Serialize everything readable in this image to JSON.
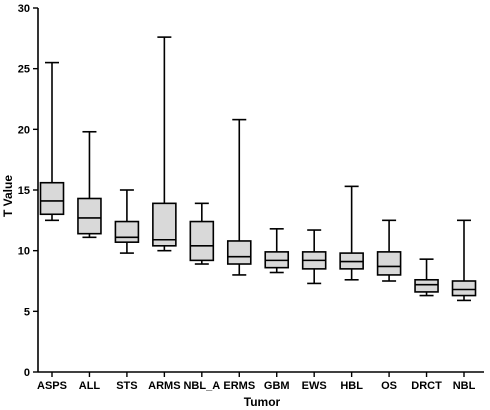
{
  "chart_data": {
    "type": "box",
    "title": "",
    "xlabel": "Tumor",
    "ylabel": "T Value",
    "ylim": [
      0,
      30
    ],
    "yticks": [
      "0",
      "5",
      "10",
      "15",
      "20",
      "25",
      "30"
    ],
    "box_fill": "#d9d9d9",
    "grid": false,
    "categories": [
      "ASPS",
      "ALL",
      "STS",
      "ARMS",
      "NBL_A",
      "ERMS",
      "GBM",
      "EWS",
      "HBL",
      "OS",
      "DRCT",
      "NBL"
    ],
    "boxes": [
      {
        "min": 12.5,
        "q1": 13.0,
        "median": 14.1,
        "q3": 15.6,
        "max": 25.5
      },
      {
        "min": 11.1,
        "q1": 11.4,
        "median": 12.7,
        "q3": 14.3,
        "max": 19.8
      },
      {
        "min": 9.8,
        "q1": 10.7,
        "median": 11.1,
        "q3": 12.4,
        "max": 15.0
      },
      {
        "min": 10.0,
        "q1": 10.4,
        "median": 10.9,
        "q3": 13.9,
        "max": 27.6
      },
      {
        "min": 8.9,
        "q1": 9.2,
        "median": 10.4,
        "q3": 12.4,
        "max": 13.9
      },
      {
        "min": 8.0,
        "q1": 8.9,
        "median": 9.5,
        "q3": 10.8,
        "max": 20.8
      },
      {
        "min": 8.2,
        "q1": 8.6,
        "median": 9.2,
        "q3": 9.9,
        "max": 11.8
      },
      {
        "min": 7.3,
        "q1": 8.5,
        "median": 9.2,
        "q3": 9.9,
        "max": 11.7
      },
      {
        "min": 7.6,
        "q1": 8.5,
        "median": 9.1,
        "q3": 9.8,
        "max": 15.3
      },
      {
        "min": 7.5,
        "q1": 8.0,
        "median": 8.7,
        "q3": 9.9,
        "max": 12.5
      },
      {
        "min": 6.3,
        "q1": 6.6,
        "median": 7.2,
        "q3": 7.6,
        "max": 9.3
      },
      {
        "min": 5.9,
        "q1": 6.3,
        "median": 6.8,
        "q3": 7.5,
        "max": 12.5
      }
    ]
  }
}
